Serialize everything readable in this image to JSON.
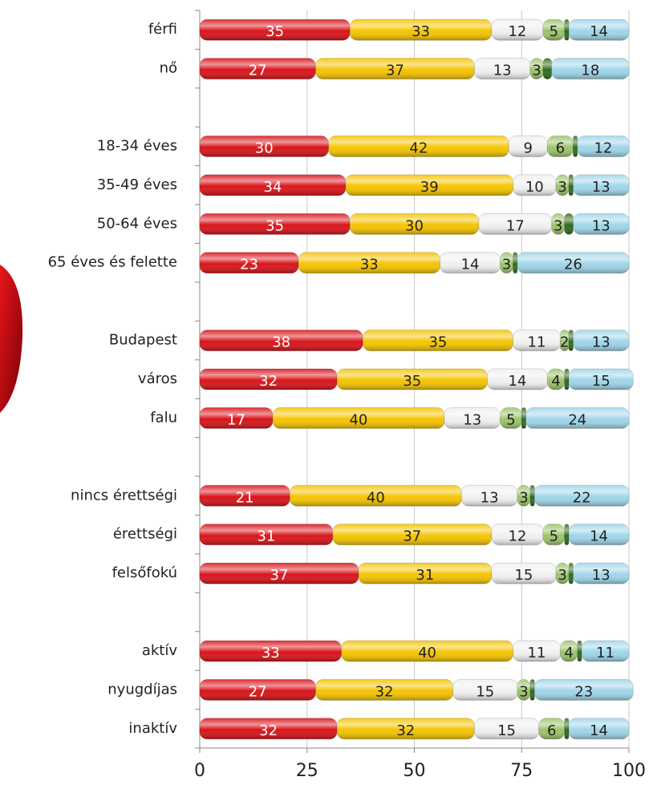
{
  "chart_data": {
    "type": "stacked-bar-horizontal",
    "categories": [
      "férfi",
      "nő",
      null,
      "18-34 éves",
      "35-49 éves",
      "50-64 éves",
      "65 éves és felette",
      null,
      "Budapest",
      "város",
      "falu",
      null,
      "nincs érettségi",
      "érettségi",
      "felsőfokú",
      null,
      "aktív",
      "nyugdíjas",
      "inaktív"
    ],
    "series": [
      {
        "color": "#d9141a",
        "show_labels": true,
        "values": [
          35,
          27,
          null,
          30,
          34,
          35,
          23,
          null,
          38,
          32,
          17,
          null,
          21,
          31,
          37,
          null,
          33,
          27,
          32
        ]
      },
      {
        "color": "#f5c400",
        "show_labels": true,
        "values": [
          33,
          37,
          null,
          42,
          39,
          30,
          33,
          null,
          35,
          35,
          40,
          null,
          40,
          37,
          31,
          null,
          40,
          32,
          32
        ]
      },
      {
        "color": "#f0f0f0",
        "show_labels": true,
        "values": [
          12,
          13,
          null,
          9,
          10,
          17,
          14,
          null,
          11,
          14,
          13,
          null,
          13,
          12,
          15,
          null,
          11,
          15,
          15
        ]
      },
      {
        "color": "#9bc46a",
        "show_labels": true,
        "values": [
          5,
          3,
          null,
          6,
          3,
          3,
          3,
          null,
          2,
          4,
          5,
          null,
          3,
          5,
          3,
          null,
          4,
          3,
          6
        ]
      },
      {
        "color": "#2f6b1e",
        "show_labels": false,
        "values": [
          1,
          2,
          null,
          1,
          1,
          2,
          1,
          null,
          1,
          1,
          1,
          null,
          1,
          1,
          1,
          null,
          1,
          1,
          1
        ]
      },
      {
        "color": "#9fd6ea",
        "show_labels": true,
        "values": [
          14,
          18,
          null,
          12,
          13,
          13,
          26,
          null,
          13,
          15,
          24,
          null,
          22,
          14,
          13,
          null,
          11,
          23,
          14
        ]
      }
    ],
    "xlim": [
      0,
      100
    ],
    "xticks": [
      0,
      25,
      50,
      75,
      100
    ],
    "grid": true
  }
}
